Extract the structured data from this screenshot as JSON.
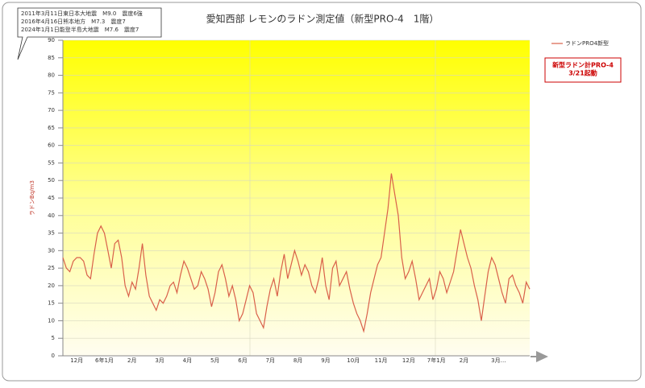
{
  "chart_data": {
    "type": "line",
    "title": "愛知西部 レモンのラドン測定値（新型PRO-4　1階）",
    "annotation_lines": [
      "2011年3月11日東日本大地震　M9.0　震度6強",
      "2016年4月16日熊本地方　M7.3　震度7",
      "2024年1月1日能登半島大地震　M7.6　震度7"
    ],
    "note_lines": [
      "新型ラドン計PRO-4",
      "3/21起動"
    ],
    "y_label": "ラドンBq/m3",
    "ylim": [
      0,
      90
    ],
    "yticks": [
      0,
      5,
      10,
      15,
      20,
      25,
      30,
      35,
      40,
      45,
      50,
      55,
      60,
      65,
      70,
      75,
      80,
      85,
      90
    ],
    "grid": true,
    "legend": "upper right",
    "categories": [
      null,
      null,
      null,
      null,
      "12月",
      null,
      null,
      null,
      null,
      null,
      null,
      null,
      "6年1月",
      null,
      null,
      null,
      null,
      null,
      null,
      null,
      "2月",
      null,
      null,
      null,
      null,
      null,
      null,
      null,
      "3月",
      null,
      null,
      null,
      null,
      null,
      null,
      null,
      "4月",
      null,
      null,
      null,
      null,
      null,
      null,
      null,
      "5月",
      null,
      null,
      null,
      null,
      null,
      null,
      null,
      "6月",
      null,
      null,
      null,
      null,
      null,
      null,
      null,
      "7月",
      null,
      null,
      null,
      null,
      null,
      null,
      null,
      "8月",
      null,
      null,
      null,
      null,
      null,
      null,
      null,
      "9月",
      null,
      null,
      null,
      null,
      null,
      null,
      null,
      "10月",
      null,
      null,
      null,
      null,
      null,
      null,
      null,
      "11月",
      null,
      null,
      null,
      null,
      null,
      null,
      null,
      "12月",
      null,
      null,
      null,
      null,
      null,
      null,
      null,
      "7年1月",
      null,
      null,
      null,
      null,
      null,
      null,
      null,
      "2月",
      null,
      null,
      null,
      null,
      null,
      null,
      null,
      null,
      null,
      "3月…",
      null,
      null,
      null,
      null,
      null,
      null,
      null,
      null,
      null
    ],
    "series": [
      {
        "name": "ラドンPRO4新型",
        "color": "#d9604a",
        "values": [
          28,
          25,
          24,
          27,
          28,
          28,
          27,
          23,
          22,
          29,
          35,
          37,
          35,
          30,
          25,
          32,
          33,
          28,
          20,
          17,
          21,
          19,
          25,
          32,
          23,
          17,
          15,
          13,
          16,
          15,
          17,
          20,
          21,
          18,
          23,
          27,
          25,
          22,
          19,
          20,
          24,
          22,
          19,
          14,
          18,
          24,
          26,
          22,
          17,
          20,
          16,
          10,
          12,
          16,
          20,
          18,
          12,
          10,
          8,
          14,
          19,
          22,
          17,
          24,
          29,
          22,
          26,
          30,
          27,
          23,
          26,
          24,
          20,
          18,
          22,
          28,
          20,
          16,
          25,
          27,
          20,
          22,
          24,
          19,
          15,
          12,
          10,
          7,
          12,
          18,
          22,
          26,
          28,
          35,
          42,
          52,
          46,
          40,
          28,
          22,
          24,
          27,
          22,
          16,
          18,
          20,
          22,
          16,
          19,
          24,
          22,
          18,
          21,
          24,
          30,
          36,
          32,
          28,
          25,
          20,
          16,
          10,
          17,
          24,
          28,
          26,
          22,
          18,
          15,
          22,
          23,
          20,
          18,
          15,
          21,
          19
        ]
      }
    ]
  }
}
